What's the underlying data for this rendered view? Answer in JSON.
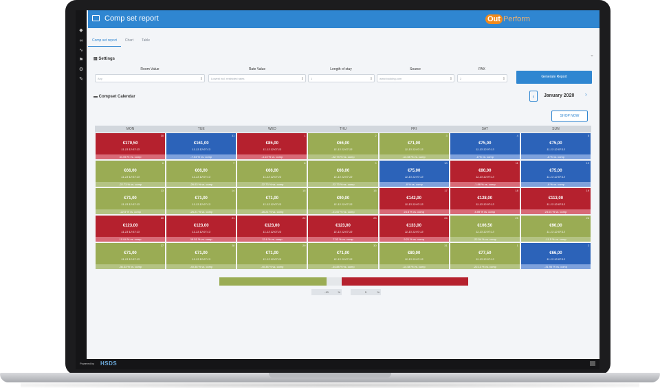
{
  "header": {
    "title": "Comp set report",
    "logo_out": "Out",
    "logo_perform": "Perform"
  },
  "tabs": [
    {
      "label": "Comp set report",
      "active": true
    },
    {
      "label": "Chart",
      "active": false
    },
    {
      "label": "Table",
      "active": false
    }
  ],
  "settings": {
    "title": "Settings",
    "filters": {
      "room_value": {
        "label": "Room Value",
        "value": "Any"
      },
      "rate_value": {
        "label": "Rate Value",
        "value": "Lowest incl. restricted rates"
      },
      "length_of_stay": {
        "label": "Length of stay",
        "value": "1"
      },
      "source": {
        "label": "Source",
        "value": "www.booking.com"
      },
      "pax": {
        "label": "PAX",
        "value": "2"
      }
    },
    "generate_label": "Generate Report"
  },
  "calendar": {
    "title": "Compset Calendar",
    "month": "January 2020",
    "shop_now_label": "SHOP NOW",
    "weekdays": [
      "MON",
      "TUE",
      "WED",
      "THU",
      "FRI",
      "SAT",
      "SUN"
    ],
    "timestamp": "11-13 12:07:13",
    "days": [
      {
        "day": "30",
        "price": "€170,50",
        "vs": "41.06 % vs. comp",
        "color": "red"
      },
      {
        "day": "31",
        "price": "€161,00",
        "vs": "-7.04 % vs. comp",
        "color": "blue"
      },
      {
        "day": "1",
        "price": "€85,00",
        "vs": "-4.13 % vs. comp",
        "color": "red"
      },
      {
        "day": "2",
        "price": "€66,00",
        "vs": "-22.73 % vs. comp",
        "color": "green"
      },
      {
        "day": "3",
        "price": "€71,00",
        "vs": "-14.08 % vs. comp",
        "color": "green"
      },
      {
        "day": "4",
        "price": "€75,00",
        "vs": "-8 % vs. comp",
        "color": "blue"
      },
      {
        "day": "5",
        "price": "€75,00",
        "vs": "-8 % vs. comp",
        "color": "blue"
      },
      {
        "day": "6",
        "price": "€66,00",
        "vs": "-22.73 % vs. comp",
        "color": "green"
      },
      {
        "day": "7",
        "price": "€66,00",
        "vs": "-26.03 % vs. comp",
        "color": "green"
      },
      {
        "day": "8",
        "price": "€66,00",
        "vs": "-22.73 % vs. comp",
        "color": "green"
      },
      {
        "day": "9",
        "price": "€66,00",
        "vs": "-22.73 % vs. comp",
        "color": "green"
      },
      {
        "day": "10",
        "price": "€75,00",
        "vs": "-8 % vs. comp",
        "color": "blue"
      },
      {
        "day": "11",
        "price": "€80,00",
        "vs": "-1.88 % vs. comp",
        "color": "red"
      },
      {
        "day": "12",
        "price": "€75,00",
        "vs": "-8 % vs. comp",
        "color": "blue"
      },
      {
        "day": "13",
        "price": "€71,00",
        "vs": "-22.5 % vs. comp",
        "color": "green"
      },
      {
        "day": "14",
        "price": "€71,00",
        "vs": "-26.21 % vs. comp",
        "color": "green"
      },
      {
        "day": "15",
        "price": "€71,00",
        "vs": "-26.21 % vs. comp",
        "color": "green"
      },
      {
        "day": "16",
        "price": "€90,00",
        "vs": "-21.67 % vs. comp",
        "color": "green"
      },
      {
        "day": "17",
        "price": "€142,00",
        "vs": "24.5 % vs. comp",
        "color": "red"
      },
      {
        "day": "18",
        "price": "€128,00",
        "vs": "8.59 % vs. comp",
        "color": "red"
      },
      {
        "day": "19",
        "price": "€113,00",
        "vs": "23.01 % vs. comp",
        "color": "red"
      },
      {
        "day": "20",
        "price": "€123,00",
        "vs": "10.04 % vs. comp",
        "color": "red"
      },
      {
        "day": "21",
        "price": "€123,00",
        "vs": "19.51 % vs. comp",
        "color": "red"
      },
      {
        "day": "22",
        "price": "€123,00",
        "vs": "12.6 % vs. comp",
        "color": "red"
      },
      {
        "day": "23",
        "price": "€123,00",
        "vs": "7.32 % vs. comp",
        "color": "red"
      },
      {
        "day": "24",
        "price": "€133,00",
        "vs": "9.21 % vs. comp",
        "color": "red"
      },
      {
        "day": "25",
        "price": "€106,50",
        "vs": "-22.54 % vs. comp",
        "color": "green"
      },
      {
        "day": "26",
        "price": "€90,00",
        "vs": "-11.5 % vs. comp",
        "color": "green"
      },
      {
        "day": "27",
        "price": "€71,00",
        "vs": "-36.33 % vs. comp",
        "color": "green"
      },
      {
        "day": "28",
        "price": "€71,00",
        "vs": "-40.38 % vs. comp",
        "color": "green"
      },
      {
        "day": "29",
        "price": "€71,00",
        "vs": "-40.38 % vs. comp",
        "color": "green"
      },
      {
        "day": "30",
        "price": "€71,00",
        "vs": "-34.88 % vs. comp",
        "color": "green"
      },
      {
        "day": "31",
        "price": "€80,00",
        "vs": "-14.58 % vs. comp",
        "color": "green"
      },
      {
        "day": "1",
        "price": "€77,50",
        "vs": "-22.13 % vs. comp",
        "color": "green"
      },
      {
        "day": "2",
        "price": "€66,00",
        "vs": "-31.96 % vs. comp",
        "color": "blue"
      }
    ]
  },
  "legend": {
    "low_value": "-10",
    "high_value": "5",
    "unit": "%"
  },
  "footer": {
    "powered_by": "Powered by",
    "brand": "HSDS"
  },
  "colors": {
    "header": "#2f86d1",
    "red": "#b5212e",
    "green": "#9aac54",
    "blue": "#2c63b9"
  }
}
